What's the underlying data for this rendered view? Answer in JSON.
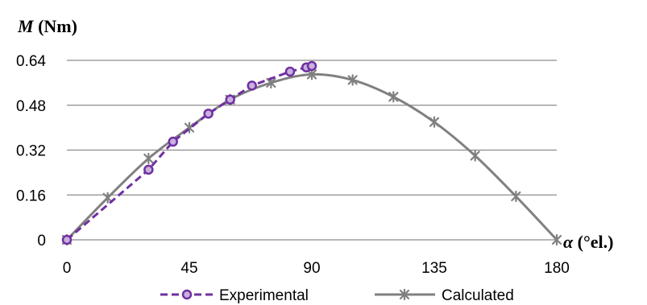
{
  "chart_data": {
    "type": "line",
    "title": "",
    "ylabel_symbol": "M",
    "ylabel_unit": " (Nm)",
    "xlabel_symbol": "α",
    "xlabel_unit": " (°el.)",
    "xlim": [
      0,
      180
    ],
    "ylim": [
      0,
      0.64
    ],
    "xticks": [
      0,
      45,
      90,
      135,
      180
    ],
    "yticks": [
      0,
      0.16,
      0.32,
      0.48,
      0.64
    ],
    "xtick_labels": [
      "0",
      "45",
      "90",
      "135",
      "180"
    ],
    "ytick_labels": [
      "0",
      "0.16",
      "0.32",
      "0.48",
      "0.64"
    ],
    "grid": "horizontal",
    "legend_position": "bottom",
    "series": [
      {
        "name": "Experimental",
        "color": "#7030a0",
        "line_style": "dashed",
        "marker": "circle",
        "x": [
          0,
          30,
          39,
          52,
          60,
          68,
          82,
          88,
          90
        ],
        "y": [
          0,
          0.25,
          0.35,
          0.45,
          0.5,
          0.55,
          0.6,
          0.615,
          0.62
        ]
      },
      {
        "name": "Calculated",
        "color": "#808080",
        "line_style": "solid",
        "marker": "star",
        "x": [
          0,
          15,
          30,
          45,
          60,
          75,
          90,
          105,
          120,
          135,
          150,
          165,
          180
        ],
        "y": [
          0,
          0.15,
          0.29,
          0.4,
          0.5,
          0.56,
          0.59,
          0.57,
          0.51,
          0.42,
          0.3,
          0.155,
          0
        ]
      }
    ]
  }
}
